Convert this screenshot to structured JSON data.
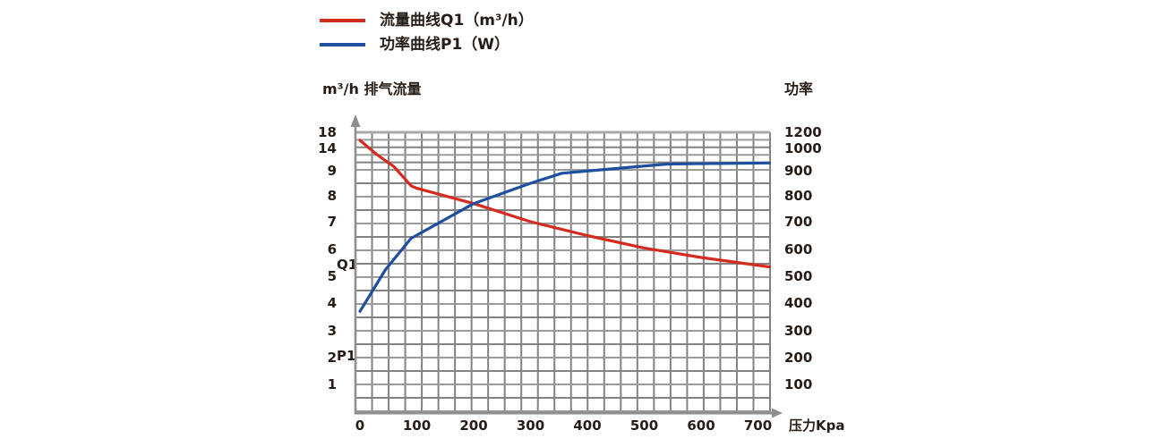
{
  "legend": {
    "items": [
      {
        "id": "Q1",
        "label": "流量曲线Q1（m³/h）",
        "color": "#d52b1e"
      },
      {
        "id": "P1",
        "label": "功率曲线P1（W）",
        "color": "#1d4f9e"
      }
    ]
  },
  "axes": {
    "left_title": "m³/h 排气流量",
    "right_title": "功率",
    "x_title": "压力Kpa"
  },
  "curve_labels": {
    "q1": "Q1",
    "p1": "P1"
  },
  "colors": {
    "flow": "#d52b1e",
    "power": "#1d4f9e",
    "grid_dark": "#828282",
    "grid_light": "#9a9a9a",
    "grid_top": "#a8a8a8",
    "axis": "#8f8f8f",
    "text": "#261c15"
  },
  "chart_data": {
    "type": "line",
    "title": "",
    "x_label": "压力Kpa",
    "x_ticks": [
      0,
      100,
      200,
      300,
      400,
      500,
      600,
      700
    ],
    "x_range": [
      0,
      720
    ],
    "y_left_label": "m³/h 排气流量",
    "y_left_ticks": [
      18,
      14,
      9,
      8,
      7,
      6,
      5,
      4,
      3,
      2,
      1
    ],
    "y_left_scale": "non-linear: labeled tick rows are equally spaced (top two intervals compressed)",
    "y_right_label": "功率 (W)",
    "y_right_ticks": [
      1200,
      1000,
      900,
      800,
      700,
      600,
      500,
      400,
      300,
      200,
      100
    ],
    "grid": true,
    "legend_position": "top-left",
    "series": [
      {
        "name": "流量曲线Q1（m³/h）",
        "short": "Q1",
        "axis": "left",
        "unit": "m³/h",
        "color": "#d52b1e",
        "points": [
          [
            0,
            16
          ],
          [
            30,
            12.6
          ],
          [
            60,
            9.9
          ],
          [
            90,
            8.4
          ],
          [
            100,
            8.3
          ],
          [
            200,
            7.7
          ],
          [
            300,
            7.0
          ],
          [
            400,
            6.5
          ],
          [
            500,
            6.05
          ],
          [
            600,
            5.7
          ],
          [
            720,
            5.35
          ]
        ]
      },
      {
        "name": "功率曲线P1（W）",
        "short": "P1",
        "axis": "right",
        "unit": "W",
        "color": "#1d4f9e",
        "points": [
          [
            0,
            370
          ],
          [
            45,
            525
          ],
          [
            90,
            640
          ],
          [
            200,
            770
          ],
          [
            300,
            850
          ],
          [
            355,
            890
          ],
          [
            540,
            930
          ],
          [
            720,
            935
          ]
        ]
      }
    ]
  }
}
